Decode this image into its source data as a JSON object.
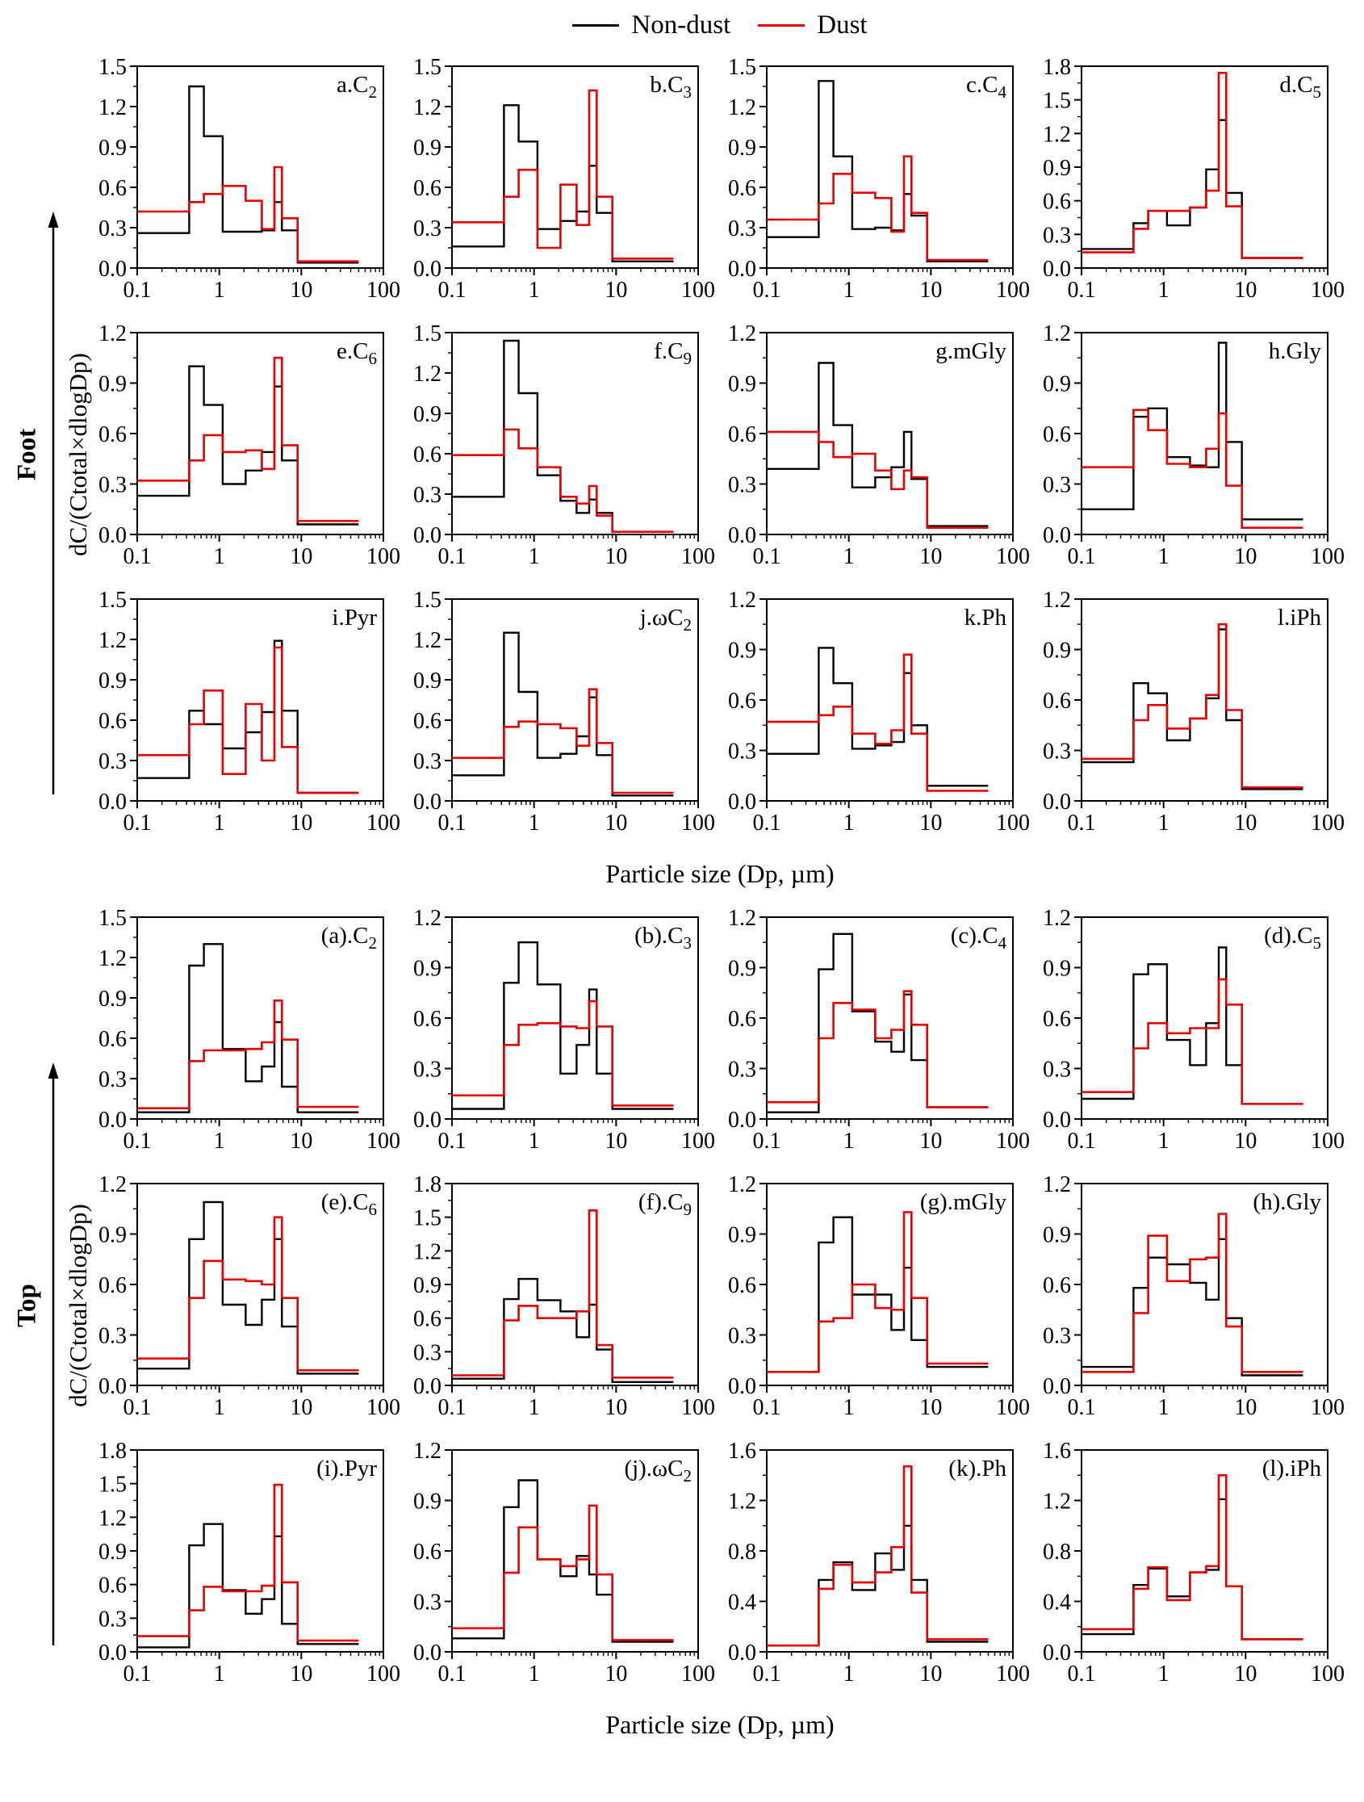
{
  "legend": {
    "items": [
      {
        "label": "Non-dust",
        "color": "#000000"
      },
      {
        "label": "Dust",
        "color": "#e60000"
      }
    ]
  },
  "chart_data": {
    "type": "step-histogram",
    "x_scale": "log",
    "x_ticks": [
      0.1,
      1,
      10,
      100
    ],
    "bin_edges_um": [
      0.1,
      0.43,
      0.65,
      1.1,
      2.1,
      3.3,
      4.7,
      5.8,
      9,
      50
    ],
    "series_names": [
      "Non-dust",
      "Dust"
    ],
    "colors": {
      "non_dust": "#000000",
      "dust": "#e60000"
    },
    "xlabel": "Particle size (Dp, µm)",
    "ylabel": "dC/(Ctotal×dlogDp)",
    "groups": [
      {
        "name": "Foot",
        "panels": [
          {
            "title": "a.C",
            "title_sub": "2",
            "ymax": 1.5,
            "ystep": 0.3,
            "non_dust": [
              0.26,
              1.35,
              0.98,
              0.27,
              0.27,
              0.28,
              0.49,
              0.28,
              0.04
            ],
            "dust": [
              0.42,
              0.49,
              0.55,
              0.61,
              0.5,
              0.29,
              0.75,
              0.37,
              0.05
            ]
          },
          {
            "title": "b.C",
            "title_sub": "3",
            "ymax": 1.5,
            "ystep": 0.3,
            "non_dust": [
              0.16,
              1.21,
              0.94,
              0.29,
              0.35,
              0.42,
              0.76,
              0.41,
              0.05
            ],
            "dust": [
              0.34,
              0.53,
              0.73,
              0.15,
              0.62,
              0.32,
              1.32,
              0.53,
              0.07
            ]
          },
          {
            "title": "c.C",
            "title_sub": "4",
            "ymax": 1.5,
            "ystep": 0.3,
            "non_dust": [
              0.23,
              1.39,
              0.83,
              0.29,
              0.3,
              0.28,
              0.55,
              0.39,
              0.05
            ],
            "dust": [
              0.36,
              0.48,
              0.7,
              0.56,
              0.52,
              0.27,
              0.83,
              0.41,
              0.06
            ]
          },
          {
            "title": "d.C",
            "title_sub": "5",
            "ymax": 1.8,
            "ystep": 0.3,
            "non_dust": [
              0.17,
              0.4,
              0.51,
              0.38,
              0.54,
              0.88,
              1.32,
              0.67,
              0.09
            ],
            "dust": [
              0.14,
              0.35,
              0.51,
              0.51,
              0.54,
              0.69,
              1.74,
              0.55,
              0.09
            ]
          },
          {
            "title": "e.C",
            "title_sub": "6",
            "ymax": 1.2,
            "ystep": 0.3,
            "non_dust": [
              0.23,
              1.0,
              0.77,
              0.3,
              0.38,
              0.49,
              0.88,
              0.44,
              0.06
            ],
            "dust": [
              0.32,
              0.44,
              0.59,
              0.49,
              0.5,
              0.39,
              1.05,
              0.53,
              0.08
            ]
          },
          {
            "title": "f.C",
            "title_sub": "9",
            "ymax": 1.5,
            "ystep": 0.3,
            "non_dust": [
              0.28,
              1.44,
              1.05,
              0.44,
              0.25,
              0.16,
              0.26,
              0.16,
              0.02
            ],
            "dust": [
              0.59,
              0.78,
              0.64,
              0.5,
              0.28,
              0.23,
              0.36,
              0.14,
              0.02
            ]
          },
          {
            "title": "g.mGly",
            "title_sub": "",
            "ymax": 1.2,
            "ystep": 0.3,
            "non_dust": [
              0.39,
              1.02,
              0.65,
              0.28,
              0.34,
              0.4,
              0.61,
              0.33,
              0.05
            ],
            "dust": [
              0.61,
              0.55,
              0.46,
              0.48,
              0.38,
              0.27,
              0.38,
              0.34,
              0.04
            ]
          },
          {
            "title": "h.Gly",
            "title_sub": "",
            "ymax": 1.2,
            "ystep": 0.3,
            "non_dust": [
              0.15,
              0.7,
              0.75,
              0.46,
              0.41,
              0.4,
              1.14,
              0.55,
              0.09
            ],
            "dust": [
              0.4,
              0.74,
              0.62,
              0.42,
              0.4,
              0.51,
              0.72,
              0.29,
              0.04
            ]
          },
          {
            "title": "i.Pyr",
            "title_sub": "",
            "ymax": 1.5,
            "ystep": 0.3,
            "non_dust": [
              0.17,
              0.67,
              0.57,
              0.39,
              0.51,
              0.66,
              1.19,
              0.67,
              0.06
            ],
            "dust": [
              0.34,
              0.57,
              0.82,
              0.2,
              0.72,
              0.3,
              1.14,
              0.4,
              0.06
            ]
          },
          {
            "title": "j.ωC",
            "title_sub": "2",
            "ymax": 1.5,
            "ystep": 0.3,
            "non_dust": [
              0.19,
              1.25,
              0.81,
              0.32,
              0.35,
              0.48,
              0.77,
              0.34,
              0.04
            ],
            "dust": [
              0.32,
              0.55,
              0.59,
              0.57,
              0.54,
              0.41,
              0.83,
              0.43,
              0.06
            ]
          },
          {
            "title": "k.Ph",
            "title_sub": "",
            "ymax": 1.2,
            "ystep": 0.3,
            "non_dust": [
              0.28,
              0.91,
              0.7,
              0.31,
              0.33,
              0.35,
              0.76,
              0.45,
              0.09
            ],
            "dust": [
              0.47,
              0.51,
              0.56,
              0.4,
              0.34,
              0.42,
              0.87,
              0.4,
              0.06
            ]
          },
          {
            "title": "l.iPh",
            "title_sub": "",
            "ymax": 1.2,
            "ystep": 0.3,
            "non_dust": [
              0.23,
              0.7,
              0.64,
              0.36,
              0.49,
              0.61,
              1.02,
              0.48,
              0.07
            ],
            "dust": [
              0.25,
              0.48,
              0.57,
              0.43,
              0.49,
              0.63,
              1.05,
              0.54,
              0.08
            ]
          }
        ]
      },
      {
        "name": "Top",
        "panels": [
          {
            "title": "(a).C",
            "title_sub": "2",
            "ymax": 1.5,
            "ystep": 0.3,
            "non_dust": [
              0.05,
              1.14,
              1.3,
              0.52,
              0.28,
              0.39,
              0.72,
              0.24,
              0.05
            ],
            "dust": [
              0.08,
              0.43,
              0.51,
              0.51,
              0.52,
              0.57,
              0.88,
              0.59,
              0.09
            ]
          },
          {
            "title": "(b).C",
            "title_sub": "3",
            "ymax": 1.2,
            "ystep": 0.3,
            "non_dust": [
              0.06,
              0.81,
              1.05,
              0.8,
              0.27,
              0.44,
              0.77,
              0.27,
              0.06
            ],
            "dust": [
              0.14,
              0.44,
              0.56,
              0.57,
              0.55,
              0.54,
              0.7,
              0.55,
              0.08
            ]
          },
          {
            "title": "(c).C",
            "title_sub": "4",
            "ymax": 1.2,
            "ystep": 0.3,
            "non_dust": [
              0.04,
              0.89,
              1.1,
              0.64,
              0.46,
              0.4,
              0.74,
              0.35,
              0.07
            ],
            "dust": [
              0.1,
              0.48,
              0.69,
              0.65,
              0.48,
              0.53,
              0.76,
              0.56,
              0.07
            ]
          },
          {
            "title": "(d).C",
            "title_sub": "5",
            "ymax": 1.2,
            "ystep": 0.3,
            "non_dust": [
              0.12,
              0.86,
              0.92,
              0.47,
              0.32,
              0.57,
              1.02,
              0.32,
              0.09
            ],
            "dust": [
              0.16,
              0.42,
              0.57,
              0.51,
              0.54,
              0.54,
              0.83,
              0.68,
              0.09
            ]
          },
          {
            "title": "(e).C",
            "title_sub": "6",
            "ymax": 1.2,
            "ystep": 0.3,
            "non_dust": [
              0.1,
              0.87,
              1.09,
              0.48,
              0.36,
              0.51,
              0.87,
              0.35,
              0.07
            ],
            "dust": [
              0.16,
              0.52,
              0.74,
              0.63,
              0.62,
              0.6,
              1.0,
              0.52,
              0.09
            ]
          },
          {
            "title": "(f).C",
            "title_sub": "9",
            "ymax": 1.8,
            "ystep": 0.3,
            "non_dust": [
              0.06,
              0.77,
              0.95,
              0.76,
              0.66,
              0.43,
              0.72,
              0.32,
              0.03
            ],
            "dust": [
              0.09,
              0.58,
              0.71,
              0.6,
              0.6,
              0.66,
              1.56,
              0.36,
              0.07
            ]
          },
          {
            "title": "(g).mGly",
            "title_sub": "",
            "ymax": 1.2,
            "ystep": 0.3,
            "non_dust": [
              0.08,
              0.85,
              1.0,
              0.54,
              0.54,
              0.33,
              0.7,
              0.27,
              0.11
            ],
            "dust": [
              0.08,
              0.38,
              0.4,
              0.6,
              0.46,
              0.45,
              1.03,
              0.52,
              0.13
            ]
          },
          {
            "title": "(h).Gly",
            "title_sub": "",
            "ymax": 1.2,
            "ystep": 0.3,
            "non_dust": [
              0.11,
              0.58,
              0.76,
              0.72,
              0.61,
              0.51,
              0.87,
              0.4,
              0.06
            ],
            "dust": [
              0.08,
              0.43,
              0.89,
              0.62,
              0.75,
              0.76,
              1.02,
              0.35,
              0.08
            ]
          },
          {
            "title": "(i).Pyr",
            "title_sub": "",
            "ymax": 1.8,
            "ystep": 0.3,
            "non_dust": [
              0.04,
              0.95,
              1.14,
              0.55,
              0.34,
              0.47,
              1.03,
              0.25,
              0.07
            ],
            "dust": [
              0.14,
              0.37,
              0.58,
              0.54,
              0.54,
              0.59,
              1.49,
              0.62,
              0.1
            ]
          },
          {
            "title": "(j).ωC",
            "title_sub": "2",
            "ymax": 1.2,
            "ystep": 0.3,
            "non_dust": [
              0.08,
              0.86,
              1.02,
              0.55,
              0.45,
              0.57,
              0.46,
              0.34,
              0.06
            ],
            "dust": [
              0.14,
              0.47,
              0.74,
              0.55,
              0.51,
              0.55,
              0.87,
              0.46,
              0.07
            ]
          },
          {
            "title": "(k).Ph",
            "title_sub": "",
            "ymax": 1.6,
            "ystep": 0.4,
            "non_dust": [
              0.05,
              0.57,
              0.71,
              0.49,
              0.78,
              0.65,
              1.0,
              0.57,
              0.08
            ],
            "dust": [
              0.05,
              0.5,
              0.69,
              0.55,
              0.63,
              0.83,
              1.47,
              0.47,
              0.1
            ]
          },
          {
            "title": "(l).iPh",
            "title_sub": "",
            "ymax": 1.6,
            "ystep": 0.4,
            "non_dust": [
              0.14,
              0.53,
              0.66,
              0.44,
              0.63,
              0.65,
              1.21,
              0.52,
              0.1
            ],
            "dust": [
              0.18,
              0.5,
              0.67,
              0.41,
              0.63,
              0.68,
              1.4,
              0.52,
              0.1
            ]
          }
        ]
      }
    ]
  }
}
